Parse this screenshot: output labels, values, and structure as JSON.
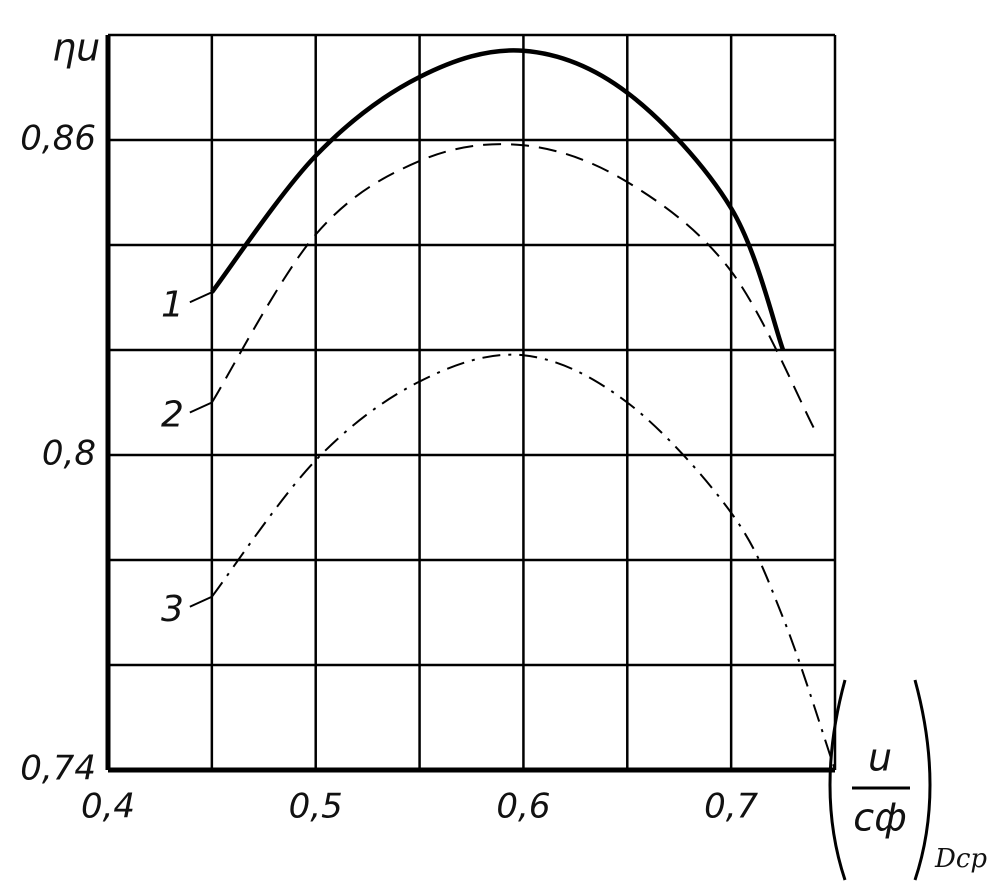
{
  "chart_data": {
    "type": "line",
    "y_label": "ηu",
    "x_label": {
      "numerator": "u",
      "denominator": "cф",
      "subscript": "Dср"
    },
    "xlim": [
      0.4,
      0.75
    ],
    "ylim": [
      0.74,
      0.88
    ],
    "xticks": [
      {
        "value": 0.4,
        "label": "0,4"
      },
      {
        "value": 0.45,
        "label": null
      },
      {
        "value": 0.5,
        "label": "0,5"
      },
      {
        "value": 0.55,
        "label": null
      },
      {
        "value": 0.6,
        "label": "0,6"
      },
      {
        "value": 0.65,
        "label": null
      },
      {
        "value": 0.7,
        "label": "0,7"
      },
      {
        "value": 0.75,
        "label": null
      }
    ],
    "yticks": [
      {
        "value": 0.74,
        "label": "0,74"
      },
      {
        "value": 0.76,
        "label": null
      },
      {
        "value": 0.78,
        "label": null
      },
      {
        "value": 0.8,
        "label": "0,8"
      },
      {
        "value": 0.82,
        "label": null
      },
      {
        "value": 0.84,
        "label": null
      },
      {
        "value": 0.86,
        "label": "0,86"
      },
      {
        "value": 0.88,
        "label": null
      }
    ],
    "grid": true,
    "series": [
      {
        "name": "1",
        "color": "#000000",
        "style": "solid",
        "x": [
          0.45,
          0.5,
          0.55,
          0.6,
          0.65,
          0.7,
          0.725
        ],
        "values": [
          0.831,
          0.857,
          0.872,
          0.877,
          0.869,
          0.847,
          0.82
        ]
      },
      {
        "name": "2",
        "color": "#000000",
        "style": "dashed",
        "x": [
          0.45,
          0.5,
          0.55,
          0.6,
          0.65,
          0.7,
          0.74
        ],
        "values": [
          0.81,
          0.842,
          0.856,
          0.859,
          0.852,
          0.835,
          0.805
        ]
      },
      {
        "name": "3",
        "color": "#000000",
        "style": "dashdot",
        "x": [
          0.45,
          0.5,
          0.55,
          0.6,
          0.65,
          0.7,
          0.725,
          0.75
        ],
        "values": [
          0.773,
          0.799,
          0.814,
          0.819,
          0.81,
          0.789,
          0.769,
          0.74
        ]
      }
    ]
  }
}
